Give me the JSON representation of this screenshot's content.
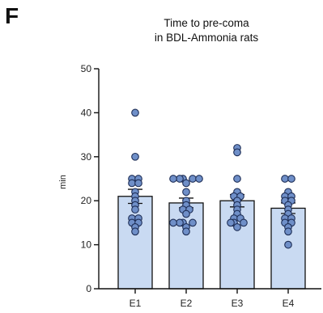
{
  "panel_label": "F",
  "chart_data": {
    "type": "bar",
    "title": "Time to pre-coma",
    "subtitle": "in BDL-Ammonia rats",
    "xlabel": "",
    "ylabel": "min",
    "categories": [
      "E1",
      "E2",
      "E3",
      "E4"
    ],
    "values": [
      21,
      19.5,
      20,
      18.3
    ],
    "errors": [
      1.6,
      1.1,
      1.4,
      1.2
    ],
    "yticks": [
      0,
      10,
      20,
      30,
      40,
      50
    ],
    "ylim": [
      0,
      50
    ],
    "grid": false,
    "legend": "none",
    "bar_color": "#c9daf2",
    "point_color": "#6f8fc8",
    "points": [
      [
        40,
        30,
        25,
        25,
        24,
        24,
        22,
        21,
        20,
        19,
        18,
        16,
        16,
        15,
        15,
        14,
        13
      ],
      [
        25,
        25,
        25,
        25,
        25,
        24,
        22,
        20,
        19,
        18,
        18,
        17,
        15,
        15,
        15,
        15,
        14,
        13
      ],
      [
        32,
        31,
        25,
        22,
        21,
        21,
        20,
        19,
        18,
        17,
        16,
        16,
        15,
        15,
        15,
        14
      ],
      [
        25,
        25,
        22,
        21,
        21,
        20,
        20,
        19,
        18,
        17,
        16,
        16,
        15,
        15,
        14,
        13,
        10
      ]
    ]
  }
}
